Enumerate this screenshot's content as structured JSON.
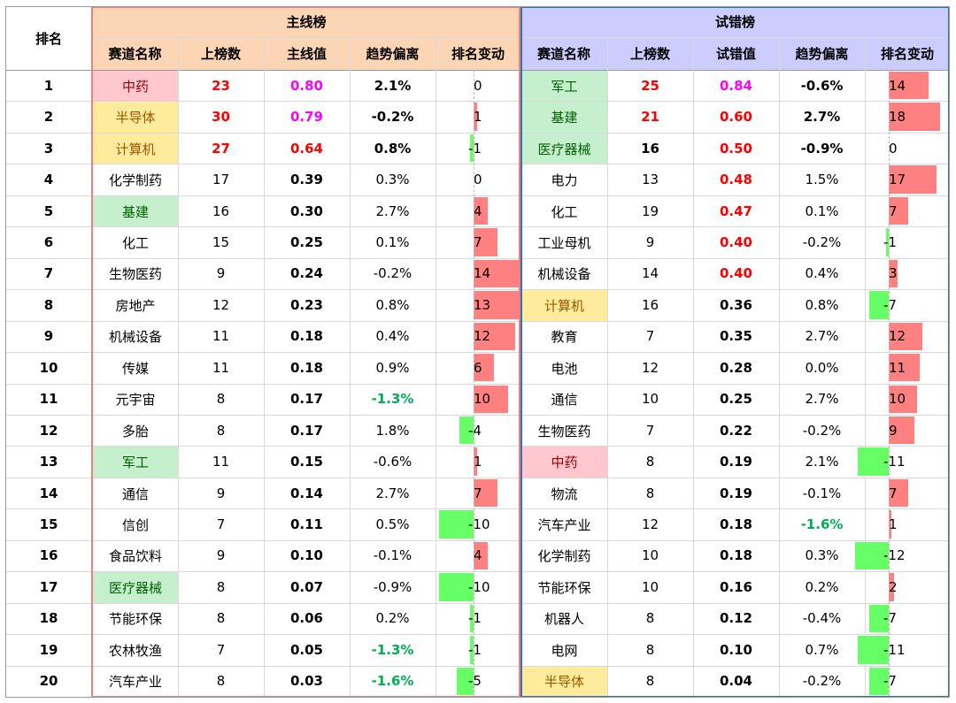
{
  "rank_header": "排名",
  "main": {
    "title": "主线榜",
    "columns": [
      "赛道名称",
      "上榜数",
      "主线值",
      "趋势偏离",
      "排名变动"
    ],
    "rows": [
      {
        "name": "中药",
        "count": "23",
        "value": "0.80",
        "trend": "2.1%",
        "change": "0",
        "change_num": 0,
        "hl": "pink",
        "count_style": "red",
        "value_style": "magenta",
        "trend_style": "bold"
      },
      {
        "name": "半导体",
        "count": "30",
        "value": "0.79",
        "trend": "-0.2%",
        "change": "1",
        "change_num": 1,
        "hl": "yellow",
        "count_style": "red",
        "value_style": "magenta",
        "trend_style": "bold"
      },
      {
        "name": "计算机",
        "count": "27",
        "value": "0.64",
        "trend": "0.8%",
        "change": "-1",
        "change_num": -1,
        "hl": "yellow",
        "count_style": "red",
        "value_style": "red",
        "trend_style": "bold"
      },
      {
        "name": "化学制药",
        "count": "17",
        "value": "0.39",
        "trend": "0.3%",
        "change": "0",
        "change_num": 0,
        "hl": "",
        "count_style": "",
        "value_style": "bold",
        "trend_style": ""
      },
      {
        "name": "基建",
        "count": "16",
        "value": "0.30",
        "trend": "2.7%",
        "change": "4",
        "change_num": 4,
        "hl": "green",
        "count_style": "",
        "value_style": "bold",
        "trend_style": ""
      },
      {
        "name": "化工",
        "count": "15",
        "value": "0.25",
        "trend": "0.1%",
        "change": "7",
        "change_num": 7,
        "hl": "",
        "count_style": "",
        "value_style": "bold",
        "trend_style": ""
      },
      {
        "name": "生物医药",
        "count": "9",
        "value": "0.24",
        "trend": "-0.2%",
        "change": "14",
        "change_num": 14,
        "hl": "",
        "count_style": "",
        "value_style": "bold",
        "trend_style": ""
      },
      {
        "name": "房地产",
        "count": "12",
        "value": "0.23",
        "trend": "0.8%",
        "change": "13",
        "change_num": 13,
        "hl": "",
        "count_style": "",
        "value_style": "bold",
        "trend_style": ""
      },
      {
        "name": "机械设备",
        "count": "11",
        "value": "0.18",
        "trend": "0.4%",
        "change": "12",
        "change_num": 12,
        "hl": "",
        "count_style": "",
        "value_style": "bold",
        "trend_style": ""
      },
      {
        "name": "传媒",
        "count": "11",
        "value": "0.18",
        "trend": "0.9%",
        "change": "6",
        "change_num": 6,
        "hl": "",
        "count_style": "",
        "value_style": "bold",
        "trend_style": ""
      },
      {
        "name": "元宇宙",
        "count": "8",
        "value": "0.17",
        "trend": "-1.3%",
        "change": "10",
        "change_num": 10,
        "hl": "",
        "count_style": "",
        "value_style": "bold",
        "trend_style": "green"
      },
      {
        "name": "多胎",
        "count": "8",
        "value": "0.17",
        "trend": "1.8%",
        "change": "-4",
        "change_num": -4,
        "hl": "",
        "count_style": "",
        "value_style": "bold",
        "trend_style": ""
      },
      {
        "name": "军工",
        "count": "11",
        "value": "0.15",
        "trend": "-0.6%",
        "change": "1",
        "change_num": 1,
        "hl": "green",
        "count_style": "",
        "value_style": "bold",
        "trend_style": ""
      },
      {
        "name": "通信",
        "count": "9",
        "value": "0.14",
        "trend": "2.7%",
        "change": "7",
        "change_num": 7,
        "hl": "",
        "count_style": "",
        "value_style": "bold",
        "trend_style": ""
      },
      {
        "name": "信创",
        "count": "7",
        "value": "0.11",
        "trend": "0.5%",
        "change": "-10",
        "change_num": -10,
        "hl": "",
        "count_style": "",
        "value_style": "bold",
        "trend_style": ""
      },
      {
        "name": "食品饮料",
        "count": "9",
        "value": "0.10",
        "trend": "-0.1%",
        "change": "4",
        "change_num": 4,
        "hl": "",
        "count_style": "",
        "value_style": "bold",
        "trend_style": ""
      },
      {
        "name": "医疗器械",
        "count": "8",
        "value": "0.07",
        "trend": "-0.9%",
        "change": "-10",
        "change_num": -10,
        "hl": "green",
        "count_style": "",
        "value_style": "bold",
        "trend_style": ""
      },
      {
        "name": "节能环保",
        "count": "8",
        "value": "0.06",
        "trend": "0.2%",
        "change": "-1",
        "change_num": -1,
        "hl": "",
        "count_style": "",
        "value_style": "bold",
        "trend_style": ""
      },
      {
        "name": "农林牧渔",
        "count": "7",
        "value": "0.05",
        "trend": "-1.3%",
        "change": "-1",
        "change_num": -1,
        "hl": "",
        "count_style": "",
        "value_style": "bold",
        "trend_style": "green"
      },
      {
        "name": "汽车产业",
        "count": "8",
        "value": "0.03",
        "trend": "-1.6%",
        "change": "-5",
        "change_num": -5,
        "hl": "",
        "count_style": "",
        "value_style": "bold",
        "trend_style": "green"
      }
    ]
  },
  "trial": {
    "title": "试错榜",
    "columns": [
      "赛道名称",
      "上榜数",
      "试错值",
      "趋势偏离",
      "排名变动"
    ],
    "rows": [
      {
        "name": "军工",
        "count": "25",
        "value": "0.84",
        "trend": "-0.6%",
        "change": "14",
        "change_num": 14,
        "hl": "green",
        "count_style": "red",
        "value_style": "magenta",
        "trend_style": "bold"
      },
      {
        "name": "基建",
        "count": "21",
        "value": "0.60",
        "trend": "2.7%",
        "change": "18",
        "change_num": 18,
        "hl": "green",
        "count_style": "red",
        "value_style": "red",
        "trend_style": "bold"
      },
      {
        "name": "医疗器械",
        "count": "16",
        "value": "0.50",
        "trend": "-0.9%",
        "change": "0",
        "change_num": 0,
        "hl": "green",
        "count_style": "bold",
        "value_style": "red",
        "trend_style": "bold"
      },
      {
        "name": "电力",
        "count": "13",
        "value": "0.48",
        "trend": "1.5%",
        "change": "17",
        "change_num": 17,
        "hl": "",
        "count_style": "",
        "value_style": "red",
        "trend_style": ""
      },
      {
        "name": "化工",
        "count": "19",
        "value": "0.47",
        "trend": "0.1%",
        "change": "7",
        "change_num": 7,
        "hl": "",
        "count_style": "",
        "value_style": "red",
        "trend_style": ""
      },
      {
        "name": "工业母机",
        "count": "9",
        "value": "0.40",
        "trend": "-0.2%",
        "change": "-1",
        "change_num": -1,
        "hl": "",
        "count_style": "",
        "value_style": "red",
        "trend_style": ""
      },
      {
        "name": "机械设备",
        "count": "14",
        "value": "0.40",
        "trend": "0.4%",
        "change": "3",
        "change_num": 3,
        "hl": "",
        "count_style": "",
        "value_style": "red",
        "trend_style": ""
      },
      {
        "name": "计算机",
        "count": "16",
        "value": "0.36",
        "trend": "0.8%",
        "change": "-7",
        "change_num": -7,
        "hl": "yellow",
        "count_style": "",
        "value_style": "bold",
        "trend_style": ""
      },
      {
        "name": "教育",
        "count": "7",
        "value": "0.35",
        "trend": "2.7%",
        "change": "12",
        "change_num": 12,
        "hl": "",
        "count_style": "",
        "value_style": "bold",
        "trend_style": ""
      },
      {
        "name": "电池",
        "count": "12",
        "value": "0.28",
        "trend": "0.0%",
        "change": "11",
        "change_num": 11,
        "hl": "",
        "count_style": "",
        "value_style": "bold",
        "trend_style": ""
      },
      {
        "name": "通信",
        "count": "10",
        "value": "0.25",
        "trend": "2.7%",
        "change": "10",
        "change_num": 10,
        "hl": "",
        "count_style": "",
        "value_style": "bold",
        "trend_style": ""
      },
      {
        "name": "生物医药",
        "count": "7",
        "value": "0.22",
        "trend": "-0.2%",
        "change": "9",
        "change_num": 9,
        "hl": "",
        "count_style": "",
        "value_style": "bold",
        "trend_style": ""
      },
      {
        "name": "中药",
        "count": "8",
        "value": "0.19",
        "trend": "2.1%",
        "change": "-11",
        "change_num": -11,
        "hl": "pink",
        "count_style": "",
        "value_style": "bold",
        "trend_style": ""
      },
      {
        "name": "物流",
        "count": "8",
        "value": "0.19",
        "trend": "-0.1%",
        "change": "7",
        "change_num": 7,
        "hl": "",
        "count_style": "",
        "value_style": "bold",
        "trend_style": ""
      },
      {
        "name": "汽车产业",
        "count": "12",
        "value": "0.18",
        "trend": "-1.6%",
        "change": "1",
        "change_num": 1,
        "hl": "",
        "count_style": "",
        "value_style": "bold",
        "trend_style": "green"
      },
      {
        "name": "化学制药",
        "count": "10",
        "value": "0.18",
        "trend": "0.3%",
        "change": "-12",
        "change_num": -12,
        "hl": "",
        "count_style": "",
        "value_style": "bold",
        "trend_style": ""
      },
      {
        "name": "节能环保",
        "count": "10",
        "value": "0.16",
        "trend": "0.2%",
        "change": "2",
        "change_num": 2,
        "hl": "",
        "count_style": "",
        "value_style": "bold",
        "trend_style": ""
      },
      {
        "name": "机器人",
        "count": "8",
        "value": "0.12",
        "trend": "-0.4%",
        "change": "-7",
        "change_num": -7,
        "hl": "",
        "count_style": "",
        "value_style": "bold",
        "trend_style": ""
      },
      {
        "name": "电网",
        "count": "8",
        "value": "0.10",
        "trend": "0.7%",
        "change": "-11",
        "change_num": -11,
        "hl": "",
        "count_style": "",
        "value_style": "bold",
        "trend_style": ""
      },
      {
        "name": "半导体",
        "count": "8",
        "value": "0.04",
        "trend": "-0.2%",
        "change": "-7",
        "change_num": -7,
        "hl": "yellow",
        "count_style": "",
        "value_style": "bold",
        "trend_style": ""
      }
    ]
  },
  "ranks": [
    "1",
    "2",
    "3",
    "4",
    "5",
    "6",
    "7",
    "8",
    "9",
    "10",
    "11",
    "12",
    "13",
    "14",
    "15",
    "16",
    "17",
    "18",
    "19",
    "20"
  ],
  "colors": {
    "main_header_bg": "#fcd5b4",
    "trial_header_bg": "#ccccff",
    "main_border": "#f08080",
    "trial_border": "#2e75b6",
    "pink": "#ffc7ce",
    "yellow": "#ffeb9c",
    "green": "#c6efce",
    "text_red": "#ff0000",
    "text_magenta": "#ff00ff",
    "text_green": "#00b050",
    "bar_pos": "#ff8080",
    "bar_neg": "#66ff66"
  }
}
